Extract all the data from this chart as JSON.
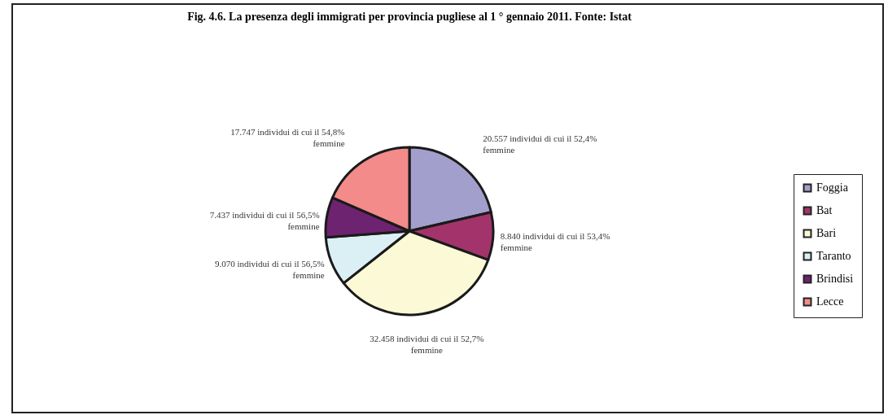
{
  "chart_data": {
    "type": "pie",
    "title": "Fig. 4.6. La presenza degli immigrati per provincia pugliese al 1 ° gennaio 2011. Fonte: Istat",
    "categories": [
      "Foggia",
      "Bat",
      "Bari",
      "Taranto",
      "Brindisi",
      "Lecce"
    ],
    "values": [
      20557,
      8840,
      32458,
      9070,
      7437,
      17747
    ],
    "colors": [
      "#a29fcc",
      "#a3346b",
      "#fcf9d6",
      "#dbf0f5",
      "#6e2370",
      "#f28b8a"
    ],
    "value_labels": [
      "20.557 individui di cui il 52,4% femmine",
      "8.840 individui di cui il 53,4% femmine",
      "32.458 individui di cui il 52,7% femmine",
      "9.070 individui di cui il 56,5% femmine",
      "7.437 individui di cui il 56,5% femmine",
      "17.747 individui di cui il 54,8% femmine"
    ],
    "legend": "right"
  }
}
